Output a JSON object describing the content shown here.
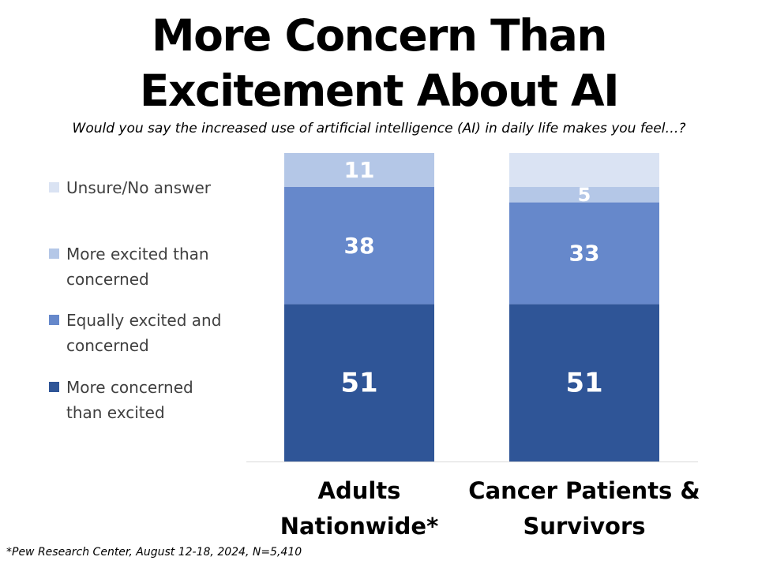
{
  "title": {
    "line1": "More Concern Than",
    "line2": "Excitement About AI"
  },
  "subtitle": "Would you say the increased use of artificial intelligence (AI) in daily life makes you feel…?",
  "footnote": "*Pew Research Center, August 12-18, 2024, N=5,410",
  "legend": [
    {
      "lines": [
        "Unsure/No answer"
      ],
      "color": "#dae3f3"
    },
    {
      "lines": [
        "More excited than",
        "concerned"
      ],
      "color": "#b4c7e7"
    },
    {
      "lines": [
        "Equally excited and",
        "concerned"
      ],
      "color": "#6688cb"
    },
    {
      "lines": [
        "More concerned",
        "than excited"
      ],
      "color": "#2f5597"
    }
  ],
  "chart_data": {
    "type": "bar",
    "stacked": true,
    "orientation": "vertical",
    "ylim": [
      0,
      100
    ],
    "grid": false,
    "legend_position": "left",
    "categories": [
      [
        "Adults",
        "Nationwide*"
      ],
      [
        "Cancer Patients &",
        "Survivors"
      ]
    ],
    "series": [
      {
        "name": "More concerned than excited",
        "values": [
          51,
          51
        ],
        "labels": [
          "51",
          "51"
        ],
        "color": "#2f5597"
      },
      {
        "name": "Equally excited and concerned",
        "values": [
          38,
          33
        ],
        "labels": [
          "38",
          "33"
        ],
        "color": "#6688cb"
      },
      {
        "name": "More excited than concerned",
        "values": [
          11,
          5
        ],
        "labels": [
          "11",
          "5"
        ],
        "color": "#b4c7e7"
      },
      {
        "name": "Unsure/No answer",
        "values": [
          0,
          11
        ],
        "labels": [
          "",
          ""
        ],
        "color": "#dae3f3"
      }
    ]
  }
}
